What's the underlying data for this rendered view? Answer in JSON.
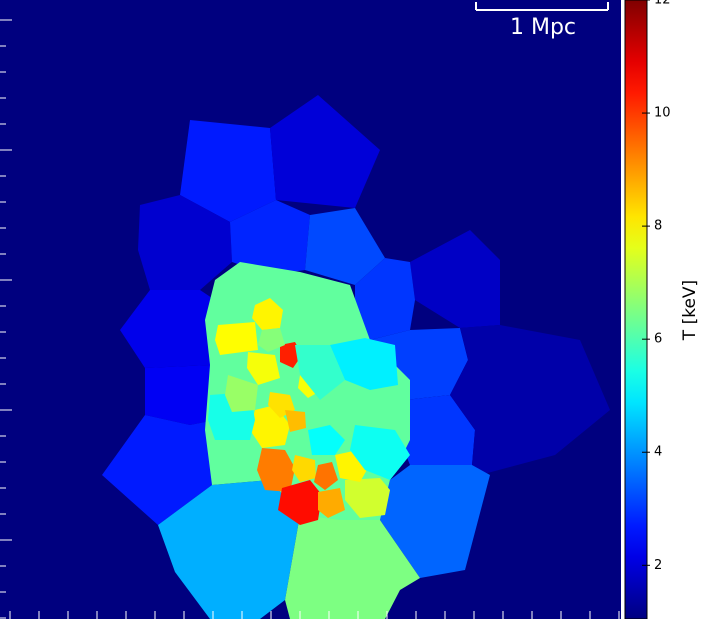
{
  "chart_data": {
    "type": "voronoi-map",
    "colormap": "jet",
    "colorbar_label": "T [keV]",
    "scalebar_label": "1 Mpc",
    "clim": [
      1.05,
      12
    ],
    "colorbar_ticks": [
      2,
      4,
      6,
      8,
      10,
      12
    ],
    "values": [
      2.7,
      2.0,
      1.9,
      2.8,
      3.2,
      1.8,
      2.2,
      2.3,
      2.7,
      3.0,
      3.1,
      3.0,
      1.5,
      3.5,
      4.3,
      6.5,
      6.2,
      8.0,
      7.9,
      10.3,
      7.8,
      6.6,
      7.8,
      5.0,
      8.0,
      8.2,
      8.6,
      9.3,
      8.3,
      9.4,
      10.5,
      8.8,
      7.4,
      8.0,
      5.4,
      5.3,
      5.7,
      6.8,
      5.2
    ]
  }
}
